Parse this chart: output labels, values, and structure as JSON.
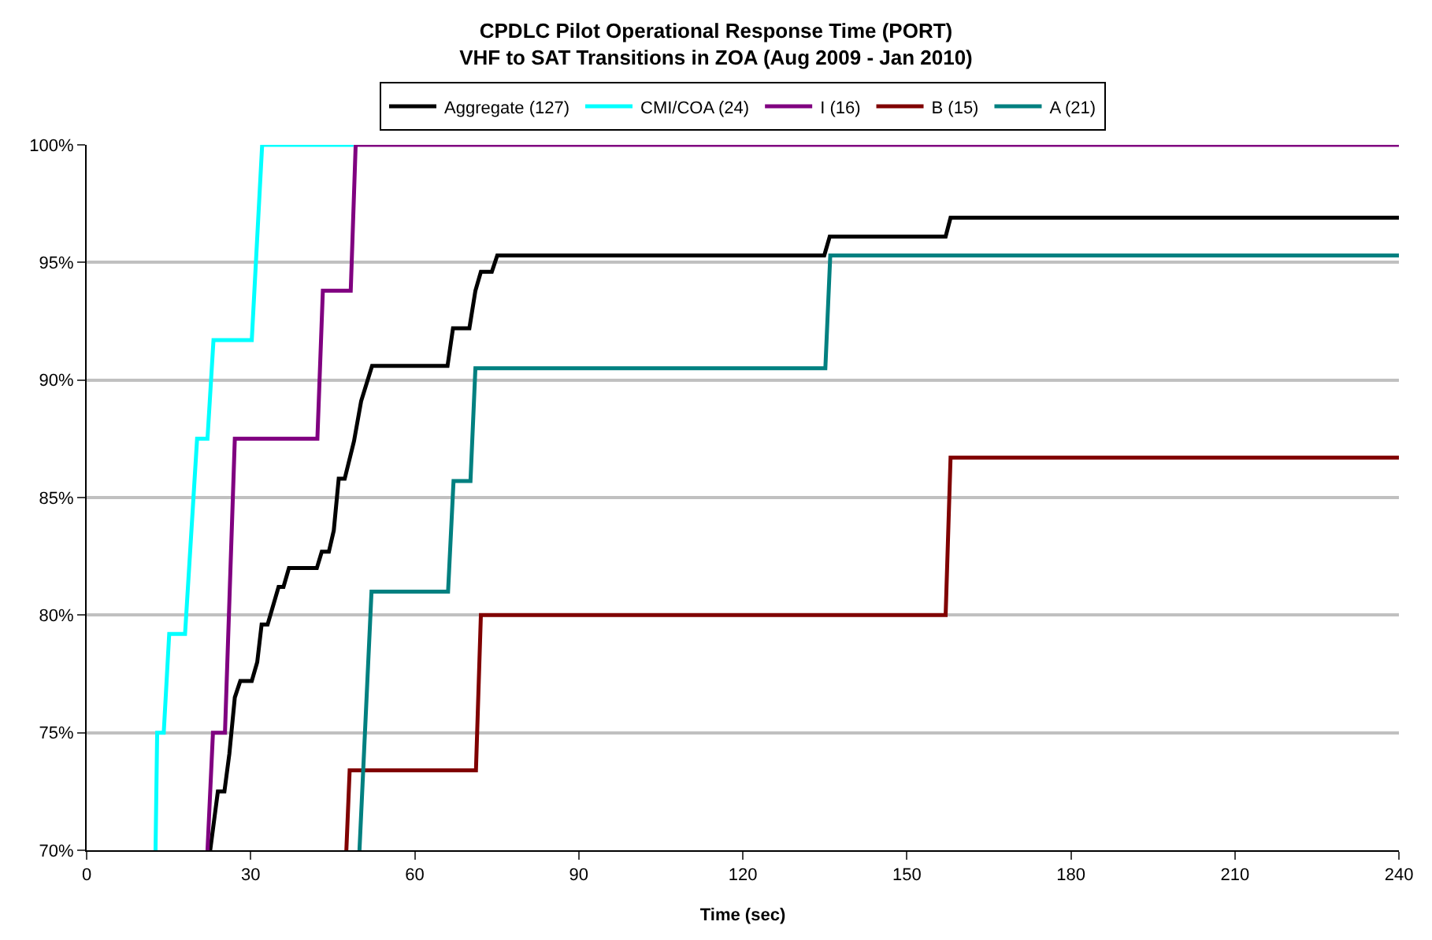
{
  "chart_data": {
    "type": "line",
    "title": "CPDLC Pilot Operational Response Time (PORT)\nVHF to SAT Transitions in ZOA (Aug 2009 - Jan 2010)",
    "xlabel": "Time (sec)",
    "xlim": [
      0,
      240
    ],
    "xticks": [
      0,
      30,
      60,
      90,
      120,
      150,
      180,
      210,
      240
    ],
    "ylim": [
      70,
      100
    ],
    "yticks": [
      {
        "value": 70,
        "label": "70%"
      },
      {
        "value": 75,
        "label": "75%"
      },
      {
        "value": 80,
        "label": "80%"
      },
      {
        "value": 85,
        "label": "85%"
      },
      {
        "value": 90,
        "label": "90%"
      },
      {
        "value": 95,
        "label": "95%"
      },
      {
        "value": 100,
        "label": "100%"
      }
    ],
    "grid": "y",
    "legend": "top",
    "marker": "none",
    "line_style": "solid",
    "series": [
      {
        "name": "Aggregate (127)",
        "color": "#000000",
        "x": [
          22.6,
          24.0,
          25.2,
          26.1,
          27.1,
          28.1,
          30.2,
          31.2,
          32.0,
          33.1,
          35.1,
          36.0,
          37.0,
          42.1,
          43.0,
          44.3,
          45.2,
          46.1,
          47.2,
          48.9,
          50.2,
          52.2,
          66.0,
          67.0,
          70.0,
          71.1,
          72.1,
          74.1,
          75.1,
          134.9,
          135.9,
          157.1,
          158.0,
          240
        ],
        "values": [
          70,
          72.5,
          72.5,
          74.1,
          76.5,
          77.2,
          77.2,
          78.0,
          79.6,
          79.6,
          81.2,
          81.2,
          82.0,
          82.0,
          82.7,
          82.7,
          83.6,
          85.8,
          85.8,
          87.4,
          89.1,
          90.6,
          90.6,
          92.2,
          92.2,
          93.8,
          94.6,
          94.6,
          95.3,
          95.3,
          96.1,
          96.1,
          96.9,
          96.9
        ]
      },
      {
        "name": "CMI/COA (24)",
        "color": "#00ffff",
        "x": [
          12.6,
          12.9,
          14.1,
          15.1,
          18.0,
          20.2,
          22.1,
          23.2,
          30.2,
          32.1,
          48.8
        ],
        "values": [
          70,
          75,
          75,
          79.2,
          79.2,
          87.5,
          87.5,
          91.7,
          91.7,
          100,
          100
        ]
      },
      {
        "name": "I (16)",
        "color": "#800080",
        "x": [
          22.1,
          23.1,
          25.3,
          27.1,
          42.2,
          43.2,
          48.3,
          49.2,
          240
        ],
        "values": [
          70,
          75,
          75,
          87.5,
          87.5,
          93.8,
          93.8,
          100,
          100
        ]
      },
      {
        "name": "B (15)",
        "color": "#800000",
        "x": [
          47.5,
          48.1,
          71.2,
          72.1,
          157.1,
          158.0,
          240
        ],
        "values": [
          70,
          73.4,
          73.4,
          80.0,
          80.0,
          86.7,
          86.7
        ]
      },
      {
        "name": "A (21)",
        "color": "#008080",
        "x": [
          49.9,
          52.1,
          66.1,
          67.1,
          70.2,
          71.1,
          135.1,
          136.0,
          240
        ],
        "values": [
          70,
          81.0,
          81.0,
          85.7,
          85.7,
          90.5,
          90.5,
          95.3,
          95.3
        ]
      }
    ]
  }
}
